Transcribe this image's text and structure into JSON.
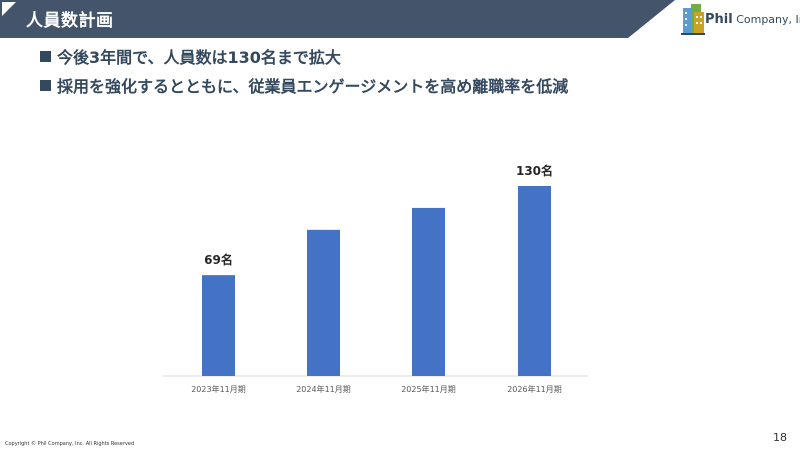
{
  "header": {
    "title": "人員数計画",
    "band_color": "#44546a"
  },
  "logo": {
    "brand": "Phil",
    "name": "Company, Inc"
  },
  "bullets": [
    "今後3年間で、人員数は130名まで拡大",
    "採用を強化するとともに、従業員エンゲージメントを高め離職率を低減"
  ],
  "chart_data": {
    "type": "bar",
    "categories": [
      "2023年11月期",
      "2024年11月期",
      "2025年11月期",
      "2026年11月期"
    ],
    "values": [
      69,
      100,
      115,
      130
    ],
    "data_labels": [
      "69名",
      "",
      "",
      "130名"
    ],
    "title": "",
    "xlabel": "",
    "ylabel": "",
    "ylim": [
      0,
      130
    ],
    "grid": false,
    "bar_color": "#4472c4"
  },
  "footer": {
    "copyright": "Copyright © Phil Company, Inc.  All Rights Reserved",
    "page_number": "18"
  }
}
